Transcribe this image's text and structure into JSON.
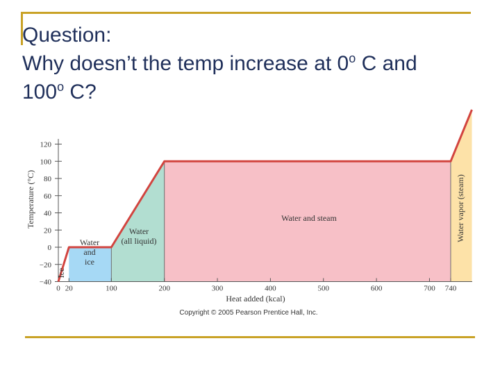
{
  "question": {
    "heading": "Question:",
    "line2_part1": "Why doesn’t the temp increase at 0",
    "degree_symbol": "o",
    "line2_part2": " C and",
    "line3_part1": "100",
    "line3_part2": " C?"
  },
  "colors": {
    "accent_rule": "#c9a227",
    "question_text": "#1f2f5a",
    "curve": "#d2443f",
    "ice": "#ffffff",
    "water_ice": "#a6d9f5",
    "liquid": "#b2ded1",
    "water_steam": "#f7c0c7",
    "vapor": "#fde2a8"
  },
  "chart_data": {
    "type": "line",
    "xlabel": "Heat added (kcal)",
    "ylabel": "Temperature (°C)",
    "xlim": [
      0,
      780
    ],
    "ylim": [
      -40,
      130
    ],
    "x_ticks": [
      0,
      20,
      100,
      200,
      300,
      400,
      500,
      600,
      700,
      740
    ],
    "y_ticks": [
      -40,
      -20,
      0,
      20,
      40,
      60,
      80,
      100,
      120
    ],
    "series": [
      {
        "x": [
          0,
          20,
          100,
          200,
          740,
          780
        ],
        "y": [
          -40,
          0,
          0,
          100,
          100,
          160
        ]
      }
    ],
    "regions": [
      {
        "label": [
          "Ice"
        ],
        "x0": 0,
        "x1": 20,
        "color": "#ffffff",
        "vertical": true
      },
      {
        "label": [
          "Water",
          "and",
          "ice"
        ],
        "x0": 20,
        "x1": 100,
        "color": "#a6d9f5",
        "vertical": false
      },
      {
        "label": [
          "Water",
          "(all liquid)"
        ],
        "x0": 100,
        "x1": 200,
        "color": "#b2ded1",
        "vertical": false
      },
      {
        "label": [
          "Water and steam"
        ],
        "x0": 200,
        "x1": 740,
        "color": "#f7c0c7",
        "vertical": false
      },
      {
        "label": [
          "Water vapor (steam)"
        ],
        "x0": 740,
        "x1": 780,
        "color": "#fde2a8",
        "vertical": true
      }
    ],
    "credit": "Copyright © 2005 Pearson Prentice Hall, Inc."
  }
}
